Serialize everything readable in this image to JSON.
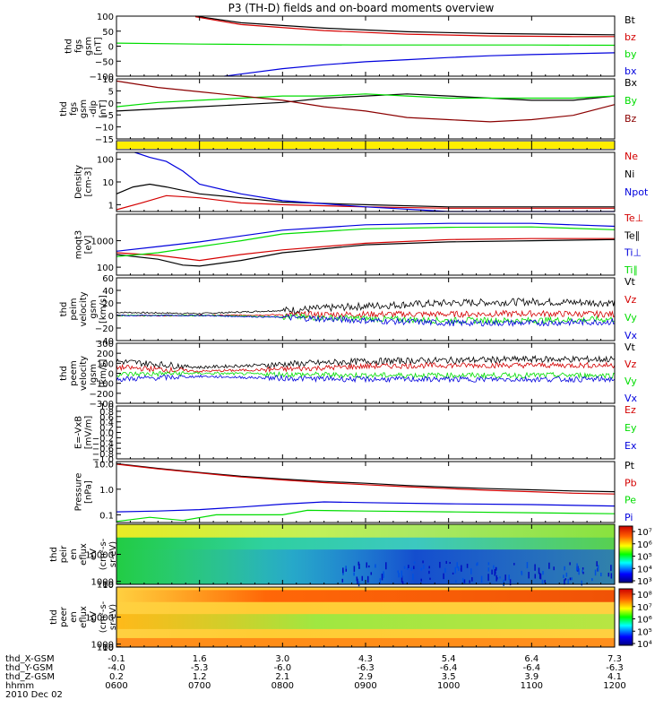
{
  "title": "P3 (TH-D) fields and on-board moments overview",
  "date": "2010 Dec 02",
  "xaxis": {
    "row_labels": [
      "thd_X-GSM",
      "thd_Y-GSM",
      "thd_Z-GSM",
      "hhmm"
    ],
    "x_gsm": [
      "-0.1",
      "1.6",
      "3.0",
      "4.3",
      "5.4",
      "6.4",
      "7.3"
    ],
    "y_gsm": [
      "-4.0",
      "-5.3",
      "-6.0",
      "-6.3",
      "-6.4",
      "-6.4",
      "-6.3"
    ],
    "z_gsm": [
      "0.2",
      "1.2",
      "2.1",
      "2.9",
      "3.5",
      "3.9",
      "4.1"
    ],
    "hhmm": [
      "0600",
      "0700",
      "0800",
      "0900",
      "1000",
      "1100",
      "1200"
    ]
  },
  "colors": {
    "black": "#000000",
    "red": "#d40000",
    "green": "#00dd00",
    "blue": "#0000dd",
    "yellow": "#ffee00",
    "darkred": "#8b0000"
  },
  "chart_data": [
    {
      "type": "line",
      "ylabel": [
        "thd",
        "fgs",
        "gsm",
        "[nT]"
      ],
      "ylim": [
        -100,
        100
      ],
      "yticks": [
        "100",
        "50",
        "0",
        "−50",
        "−100"
      ],
      "series": [
        {
          "name": "Bt",
          "color": "#000000",
          "x": [
            0.95,
            1.5,
            2.5,
            3.5,
            4.5,
            5.5,
            6
          ],
          "y": [
            100,
            78,
            60,
            48,
            42,
            39,
            38
          ]
        },
        {
          "name": "bz",
          "color": "#d40000",
          "x": [
            0.95,
            1.5,
            2.5,
            3.5,
            4.5,
            5.5,
            6
          ],
          "y": [
            98,
            72,
            52,
            40,
            34,
            32,
            32
          ]
        },
        {
          "name": "by",
          "color": "#00dd00",
          "x": [
            0,
            1,
            2,
            3,
            4,
            5,
            6
          ],
          "y": [
            10,
            7,
            5,
            4,
            4,
            4,
            3
          ]
        },
        {
          "name": "bx",
          "color": "#0000dd",
          "x": [
            1.3,
            2,
            2.5,
            3,
            3.5,
            4,
            4.5,
            5,
            5.5,
            6
          ],
          "y": [
            -100,
            -75,
            -62,
            -52,
            -45,
            -38,
            -32,
            -28,
            -25,
            -22
          ]
        }
      ]
    },
    {
      "type": "line",
      "ylabel": [
        "thd",
        "fgs",
        "gsm",
        "-dip",
        "[nT]"
      ],
      "ylim": [
        -18,
        10
      ],
      "yticks": [
        "10",
        "5",
        "0",
        "−5",
        "−10",
        "−15"
      ],
      "series": [
        {
          "name": "Bx",
          "color": "#000000",
          "x": [
            0,
            0.5,
            1,
            1.5,
            2,
            2.5,
            3,
            3.5,
            4,
            4.5,
            5,
            5.5,
            6
          ],
          "y": [
            -5,
            -4,
            -3,
            -2,
            -1,
            1,
            2,
            3,
            2,
            1,
            0,
            0,
            2
          ]
        },
        {
          "name": "By",
          "color": "#00dd00",
          "x": [
            0,
            0.5,
            1,
            1.5,
            2,
            2.5,
            3,
            3.5,
            4,
            4.5,
            5,
            5.5,
            6
          ],
          "y": [
            -3,
            -1,
            0,
            1,
            2,
            2,
            3,
            2,
            1,
            1,
            1,
            1,
            2
          ]
        },
        {
          "name": "Bz",
          "color": "#8b0000",
          "x": [
            0,
            0.5,
            1,
            1.5,
            2,
            2.5,
            3,
            3.5,
            4,
            4.5,
            5,
            5.5,
            6
          ],
          "y": [
            9,
            6,
            4,
            2,
            0,
            -3,
            -5,
            -8,
            -9,
            -10,
            -9,
            -7,
            -2
          ]
        }
      ]
    },
    {
      "type": "area",
      "ylabel": [],
      "ylim": [
        0,
        1
      ],
      "yticks": [],
      "series": [
        {
          "name": "",
          "color": "#ffee00",
          "x": [
            0,
            6
          ],
          "y": [
            1,
            1
          ]
        }
      ]
    },
    {
      "type": "line",
      "log": true,
      "ylabel": [
        "Density",
        "[cm-3]"
      ],
      "ylim": [
        0.5,
        200
      ],
      "yticks": [
        "100",
        "10",
        "1"
      ],
      "ytickvals": [
        100,
        10,
        1
      ],
      "series": [
        {
          "name": "Ne",
          "color": "#d40000",
          "x": [
            0,
            0.3,
            0.6,
            1,
            1.5,
            2,
            3,
            4,
            5,
            6
          ],
          "y": [
            0.6,
            1.2,
            2.5,
            2,
            1.2,
            1,
            0.8,
            0.7,
            0.7,
            0.7
          ]
        },
        {
          "name": "Ni",
          "color": "#000000",
          "x": [
            0,
            0.2,
            0.4,
            0.6,
            1,
            1.5,
            2,
            3,
            4,
            5,
            6
          ],
          "y": [
            3,
            6,
            8,
            6,
            3,
            2,
            1.3,
            1,
            0.8,
            0.8,
            0.8
          ]
        },
        {
          "name": "Npot",
          "color": "#0000dd",
          "x": [
            0.22,
            0.4,
            0.6,
            0.8,
            1,
            1.5,
            2,
            3,
            4,
            5,
            6
          ],
          "y": [
            200,
            120,
            80,
            30,
            8,
            3,
            1.5,
            0.8,
            0.5,
            0.5,
            0.5
          ]
        }
      ]
    },
    {
      "type": "line",
      "log": true,
      "ylabel": [
        "moqt3",
        "[eV]"
      ],
      "ylim": [
        50,
        10000
      ],
      "yticks": [
        "1000",
        "100"
      ],
      "ytickvals": [
        1000,
        100
      ],
      "series": [
        {
          "name": "Te⊥",
          "color": "#d40000",
          "x": [
            0,
            0.5,
            1,
            1.5,
            2,
            3,
            4,
            5,
            6
          ],
          "y": [
            350,
            280,
            180,
            300,
            450,
            800,
            1100,
            1200,
            1200
          ]
        },
        {
          "name": "Te∥",
          "color": "#000000",
          "x": [
            0,
            0.5,
            0.8,
            1,
            1.5,
            2,
            3,
            4,
            5,
            6
          ],
          "y": [
            300,
            200,
            120,
            110,
            180,
            350,
            700,
            900,
            1000,
            1100
          ]
        },
        {
          "name": "Ti⊥",
          "color": "#0000dd",
          "x": [
            0,
            0.5,
            1,
            1.5,
            2,
            3,
            4,
            5,
            6
          ],
          "y": [
            400,
            600,
            900,
            1500,
            2500,
            4000,
            4500,
            4500,
            3500
          ]
        },
        {
          "name": "Ti∥",
          "color": "#00dd00",
          "x": [
            0,
            0.5,
            1,
            1.5,
            2,
            3,
            4,
            5,
            6
          ],
          "y": [
            250,
            350,
            600,
            1000,
            1800,
            2800,
            3200,
            3300,
            2600
          ]
        }
      ]
    },
    {
      "type": "line",
      "ylabel": [
        "thd",
        "peim",
        "velocity",
        "gsm",
        "[km/s]"
      ],
      "ylim": [
        -40,
        60
      ],
      "yticks": [
        "60",
        "40",
        "20",
        "0",
        "−20",
        "−40"
      ],
      "series": [
        {
          "name": "Vt",
          "color": "#000000",
          "x": [
            0,
            1,
            2,
            3,
            4,
            5,
            6
          ],
          "y": [
            5,
            3,
            8,
            15,
            20,
            22,
            20
          ]
        },
        {
          "name": "Vz",
          "color": "#d40000",
          "x": [
            0,
            1,
            2,
            3,
            4,
            5,
            6
          ],
          "y": [
            0,
            0,
            1,
            2,
            2,
            3,
            2
          ]
        },
        {
          "name": "Vy",
          "color": "#00dd00",
          "x": [
            0,
            1,
            2,
            3,
            4,
            5,
            6
          ],
          "y": [
            0,
            0,
            -2,
            -5,
            -8,
            -8,
            -6
          ]
        },
        {
          "name": "Vx",
          "color": "#0000dd",
          "x": [
            0,
            1,
            2,
            3,
            4,
            5,
            6
          ],
          "y": [
            0,
            0,
            -3,
            -8,
            -12,
            -12,
            -10
          ]
        }
      ]
    },
    {
      "type": "line",
      "ylabel": [
        "thd",
        "peem",
        "velocity",
        "gsm",
        "[km/s]"
      ],
      "ylim": [
        -300,
        300
      ],
      "yticks": [
        "300",
        "200",
        "100",
        "0",
        "−100",
        "−200",
        "−300"
      ],
      "series": [
        {
          "name": "Vt",
          "color": "#000000",
          "x": [
            0,
            1,
            2,
            3,
            4,
            5,
            6
          ],
          "y": [
            120,
            60,
            90,
            120,
            130,
            140,
            140
          ]
        },
        {
          "name": "Vz",
          "color": "#d40000",
          "x": [
            0,
            1,
            2,
            3,
            4,
            5,
            6
          ],
          "y": [
            60,
            20,
            40,
            70,
            80,
            80,
            80
          ]
        },
        {
          "name": "Vy",
          "color": "#00dd00",
          "x": [
            0,
            1,
            2,
            3,
            4,
            5,
            6
          ],
          "y": [
            -10,
            0,
            -10,
            -20,
            -20,
            -20,
            -20
          ]
        },
        {
          "name": "Vx",
          "color": "#0000dd",
          "x": [
            0,
            1,
            2,
            3,
            4,
            5,
            6
          ],
          "y": [
            -60,
            -30,
            -50,
            -60,
            -60,
            -60,
            -60
          ]
        }
      ]
    },
    {
      "type": "line",
      "ylabel": [
        "E=-VxB",
        "[mV/m]"
      ],
      "ylim": [
        -1,
        1
      ],
      "yticks": [
        "1.0",
        "0.8",
        "0.6",
        "0.4",
        "0.2",
        "0.0",
        "−0.2",
        "−0.4",
        "−0.6",
        "−0.8",
        "−1.0"
      ],
      "series": [
        {
          "name": "Ez",
          "color": "#d40000",
          "x": [],
          "y": []
        },
        {
          "name": "Ey",
          "color": "#00dd00",
          "x": [],
          "y": []
        },
        {
          "name": "Ex",
          "color": "#0000dd",
          "x": [],
          "y": []
        }
      ]
    },
    {
      "type": "line",
      "log": true,
      "ylabel": [
        "Pressure",
        "[nPa]"
      ],
      "ylim": [
        0.05,
        12
      ],
      "yticks": [
        "10.0",
        "1.0",
        "0.1"
      ],
      "ytickvals": [
        10,
        1,
        0.1
      ],
      "series": [
        {
          "name": "Pt",
          "color": "#000000",
          "x": [
            0,
            0.5,
            1,
            1.5,
            2,
            2.5,
            3,
            3.5,
            4,
            4.5,
            5,
            5.5,
            6
          ],
          "y": [
            10,
            6.5,
            4.5,
            3.2,
            2.5,
            2,
            1.7,
            1.4,
            1.2,
            1.05,
            0.95,
            0.85,
            0.8
          ]
        },
        {
          "name": "Pb",
          "color": "#d40000",
          "x": [
            0,
            0.5,
            1,
            1.5,
            2,
            2.5,
            3,
            3.5,
            4,
            4.5,
            5,
            5.5,
            6
          ],
          "y": [
            9.5,
            6.2,
            4.3,
            3,
            2.3,
            1.8,
            1.5,
            1.25,
            1.05,
            0.9,
            0.8,
            0.7,
            0.65
          ]
        },
        {
          "name": "Pe",
          "color": "#00dd00",
          "x": [
            0,
            0.4,
            0.8,
            1.2,
            2,
            2.3,
            3,
            4,
            5,
            6
          ],
          "y": [
            0.055,
            0.08,
            0.06,
            0.1,
            0.1,
            0.15,
            0.14,
            0.13,
            0.12,
            0.11
          ]
        },
        {
          "name": "Pi",
          "color": "#0000dd",
          "x": [
            0,
            0.5,
            1,
            1.5,
            2,
            2.5,
            3,
            4,
            5,
            6
          ],
          "y": [
            0.13,
            0.14,
            0.16,
            0.2,
            0.26,
            0.32,
            0.3,
            0.27,
            0.25,
            0.22
          ]
        }
      ]
    },
    {
      "type": "heatmap",
      "ylabel": [
        "thd",
        "peir",
        "en",
        "eflux",
        "eV",
        "(cm²-s-",
        "sr-eV)"
      ],
      "ylim": [
        10,
        20000
      ],
      "yticks": [
        "10000",
        "1000",
        "100",
        "10"
      ],
      "ytickvals": [
        10000,
        1000,
        100,
        10
      ],
      "colorbar": {
        "ticks": [
          "10⁷",
          "10⁶",
          "10⁵",
          "10⁴",
          "10³"
        ]
      }
    },
    {
      "type": "heatmap",
      "ylabel": [
        "thd",
        "peer",
        "en",
        "eflux",
        "eV",
        "(cm²-s-",
        "sr-eV)"
      ],
      "ylim": [
        10,
        20000
      ],
      "yticks": [
        "10000",
        "1000",
        "100",
        "10"
      ],
      "ytickvals": [
        10000,
        1000,
        100,
        10
      ],
      "colorbar": {
        "ticks": [
          "10⁸",
          "10⁷",
          "10⁶",
          "10⁵",
          "10⁴"
        ]
      }
    }
  ]
}
